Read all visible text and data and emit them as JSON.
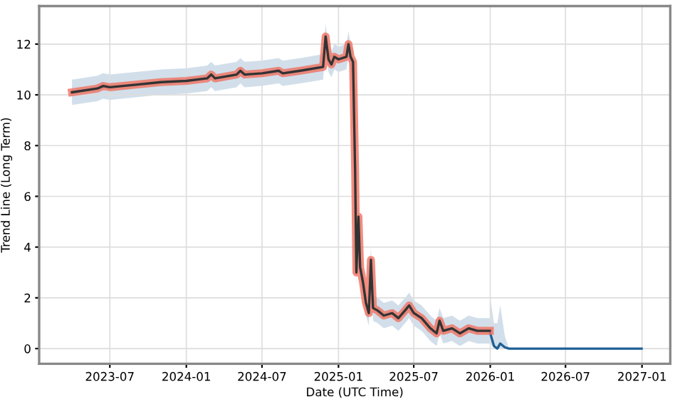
{
  "chart_data": {
    "type": "line",
    "xlabel": "Date (UTC Time)",
    "ylabel": "Trend Line (Long Term)",
    "xlim": [
      "2023-01-12",
      "2027-03-10"
    ],
    "ylim": [
      -0.6,
      13.5
    ],
    "xticks": [
      {
        "value": "2023-07-01",
        "label": "2023-07"
      },
      {
        "value": "2024-01-01",
        "label": "2024-01"
      },
      {
        "value": "2024-07-01",
        "label": "2024-07"
      },
      {
        "value": "2025-01-01",
        "label": "2025-01"
      },
      {
        "value": "2025-07-01",
        "label": "2025-07"
      },
      {
        "value": "2026-01-01",
        "label": "2026-01"
      },
      {
        "value": "2026-07-01",
        "label": "2026-07"
      },
      {
        "value": "2027-01-01",
        "label": "2027-01"
      }
    ],
    "yticks": [
      0,
      2,
      4,
      6,
      8,
      10,
      12
    ],
    "grid": true,
    "series": [
      {
        "color": "#1f5f95",
        "x": [
          "2026-01-01",
          "2026-01-10",
          "2026-01-18",
          "2026-01-25",
          "2026-02-05",
          "2026-02-15",
          "2026-12-31"
        ],
        "values": [
          0.6,
          0.1,
          0.0,
          0.2,
          0.05,
          0.0,
          0.0
        ],
        "lower": [
          0.2,
          0.0,
          0.0,
          0.0,
          0.0,
          0.0,
          0.0
        ],
        "upper": [
          2.0,
          1.0,
          1.0,
          1.7,
          0.5,
          0.0,
          0.0
        ]
      },
      {
        "color": "#333333",
        "x": [
          "2023-04-01",
          "2023-06-01",
          "2023-06-15",
          "2023-07-01",
          "2023-09-01",
          "2023-11-01",
          "2024-01-01",
          "2024-02-20",
          "2024-03-01",
          "2024-03-10",
          "2024-05-01",
          "2024-05-10",
          "2024-05-20",
          "2024-07-01",
          "2024-08-10",
          "2024-08-20",
          "2024-10-01",
          "2024-11-25",
          "2024-12-01",
          "2024-12-08",
          "2024-12-15",
          "2024-12-22",
          "2025-01-01",
          "2025-01-20",
          "2025-01-25",
          "2025-01-30",
          "2025-02-05",
          "2025-02-10",
          "2025-02-13",
          "2025-02-18",
          "2025-02-22",
          "2025-03-01",
          "2025-03-08",
          "2025-03-15",
          "2025-03-20",
          "2025-03-25",
          "2025-04-05",
          "2025-04-20",
          "2025-05-10",
          "2025-05-25",
          "2025-06-10",
          "2025-06-20",
          "2025-07-01",
          "2025-07-20",
          "2025-08-10",
          "2025-08-25",
          "2025-09-01",
          "2025-09-10",
          "2025-10-01",
          "2025-10-20",
          "2025-11-10",
          "2025-12-01",
          "2025-12-31"
        ],
        "values": [
          10.1,
          10.25,
          10.35,
          10.3,
          10.4,
          10.5,
          10.55,
          10.65,
          10.8,
          10.65,
          10.8,
          10.95,
          10.8,
          10.85,
          10.95,
          10.85,
          10.95,
          11.1,
          12.3,
          11.4,
          11.2,
          11.5,
          11.4,
          11.5,
          12.0,
          11.5,
          11.3,
          7.0,
          3.0,
          5.2,
          3.2,
          2.6,
          1.8,
          1.4,
          3.5,
          1.6,
          1.5,
          1.3,
          1.4,
          1.2,
          1.5,
          1.7,
          1.4,
          1.2,
          0.8,
          0.6,
          1.1,
          0.7,
          0.8,
          0.6,
          0.8,
          0.7,
          0.7
        ],
        "lower": [
          9.6,
          9.75,
          9.85,
          9.8,
          9.9,
          10.0,
          10.05,
          10.15,
          10.3,
          10.15,
          10.3,
          10.45,
          10.3,
          10.35,
          10.45,
          10.35,
          10.45,
          10.6,
          11.8,
          10.9,
          10.7,
          11.0,
          10.9,
          11.0,
          11.5,
          11.0,
          10.8,
          6.5,
          2.5,
          4.7,
          2.7,
          2.1,
          1.3,
          0.9,
          3.0,
          1.1,
          1.0,
          0.8,
          0.9,
          0.7,
          1.0,
          1.2,
          0.9,
          0.7,
          0.3,
          0.1,
          0.6,
          0.2,
          0.3,
          0.1,
          0.3,
          0.2,
          0.2
        ],
        "upper": [
          10.6,
          10.75,
          10.85,
          10.8,
          10.9,
          11.0,
          11.05,
          11.15,
          11.3,
          11.15,
          11.3,
          11.45,
          11.3,
          11.35,
          11.45,
          11.35,
          11.45,
          11.6,
          12.8,
          11.9,
          11.7,
          12.0,
          11.9,
          12.0,
          12.5,
          12.0,
          11.8,
          7.5,
          3.5,
          5.7,
          3.7,
          3.1,
          2.3,
          1.9,
          4.0,
          2.1,
          2.0,
          1.8,
          1.9,
          1.7,
          2.0,
          2.2,
          1.9,
          1.7,
          1.3,
          1.1,
          1.6,
          1.2,
          1.3,
          1.1,
          1.3,
          1.2,
          1.2
        ]
      }
    ]
  }
}
